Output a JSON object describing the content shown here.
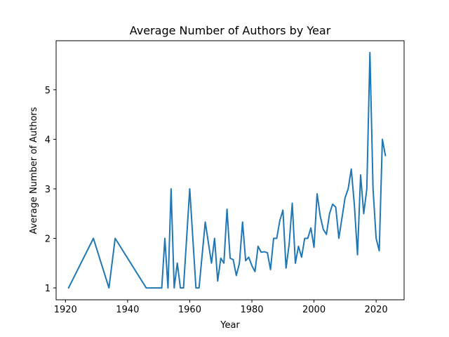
{
  "chart_data": {
    "type": "line",
    "title": "Average Number of Authors by Year",
    "xlabel": "Year",
    "ylabel": "Average Number of Authors",
    "xlim": [
      1917,
      2029
    ],
    "ylim": [
      0.76,
      5.99
    ],
    "xticks": [
      1920,
      1940,
      1960,
      1980,
      2000,
      2020
    ],
    "yticks": [
      1,
      2,
      3,
      4,
      5
    ],
    "grid": false,
    "line_color": "#1f77b4",
    "series": [
      {
        "x": [
          1921,
          1929,
          1934,
          1936,
          1946,
          1951,
          1952,
          1953,
          1954,
          1955,
          1956,
          1957,
          1958,
          1960,
          1962,
          1963,
          1965,
          1967,
          1968,
          1969,
          1970,
          1971,
          1972,
          1973,
          1974,
          1975,
          1976,
          1977,
          1978,
          1979,
          1980,
          1981,
          1982,
          1983,
          1984,
          1985,
          1986,
          1987,
          1988,
          1989,
          1990,
          1991,
          1992,
          1993,
          1994,
          1995,
          1996,
          1997,
          1998,
          1999,
          2000,
          2001,
          2002,
          2003,
          2004,
          2005,
          2006,
          2007,
          2008,
          2010,
          2011,
          2012,
          2013,
          2014,
          2015,
          2016,
          2017,
          2018,
          2019,
          2020,
          2021,
          2022,
          2023
        ],
        "y": [
          1.0,
          2.0,
          1.0,
          2.0,
          1.0,
          1.0,
          2.0,
          1.0,
          3.0,
          1.0,
          1.5,
          1.0,
          1.0,
          3.0,
          1.0,
          1.0,
          2.33,
          1.5,
          2.0,
          1.14,
          1.6,
          1.5,
          2.59,
          1.6,
          1.57,
          1.25,
          1.5,
          2.33,
          1.55,
          1.62,
          1.45,
          1.33,
          1.84,
          1.72,
          1.73,
          1.71,
          1.37,
          2.0,
          2.0,
          2.36,
          2.57,
          1.4,
          1.88,
          2.71,
          1.5,
          1.84,
          1.62,
          2.0,
          2.0,
          2.21,
          1.82,
          2.9,
          2.45,
          2.18,
          2.08,
          2.5,
          2.69,
          2.63,
          2.0,
          2.82,
          3.0,
          3.4,
          2.67,
          1.67,
          3.28,
          2.5,
          3.0,
          5.75,
          3.0,
          2.0,
          1.75,
          4.0,
          3.67
        ]
      }
    ]
  }
}
